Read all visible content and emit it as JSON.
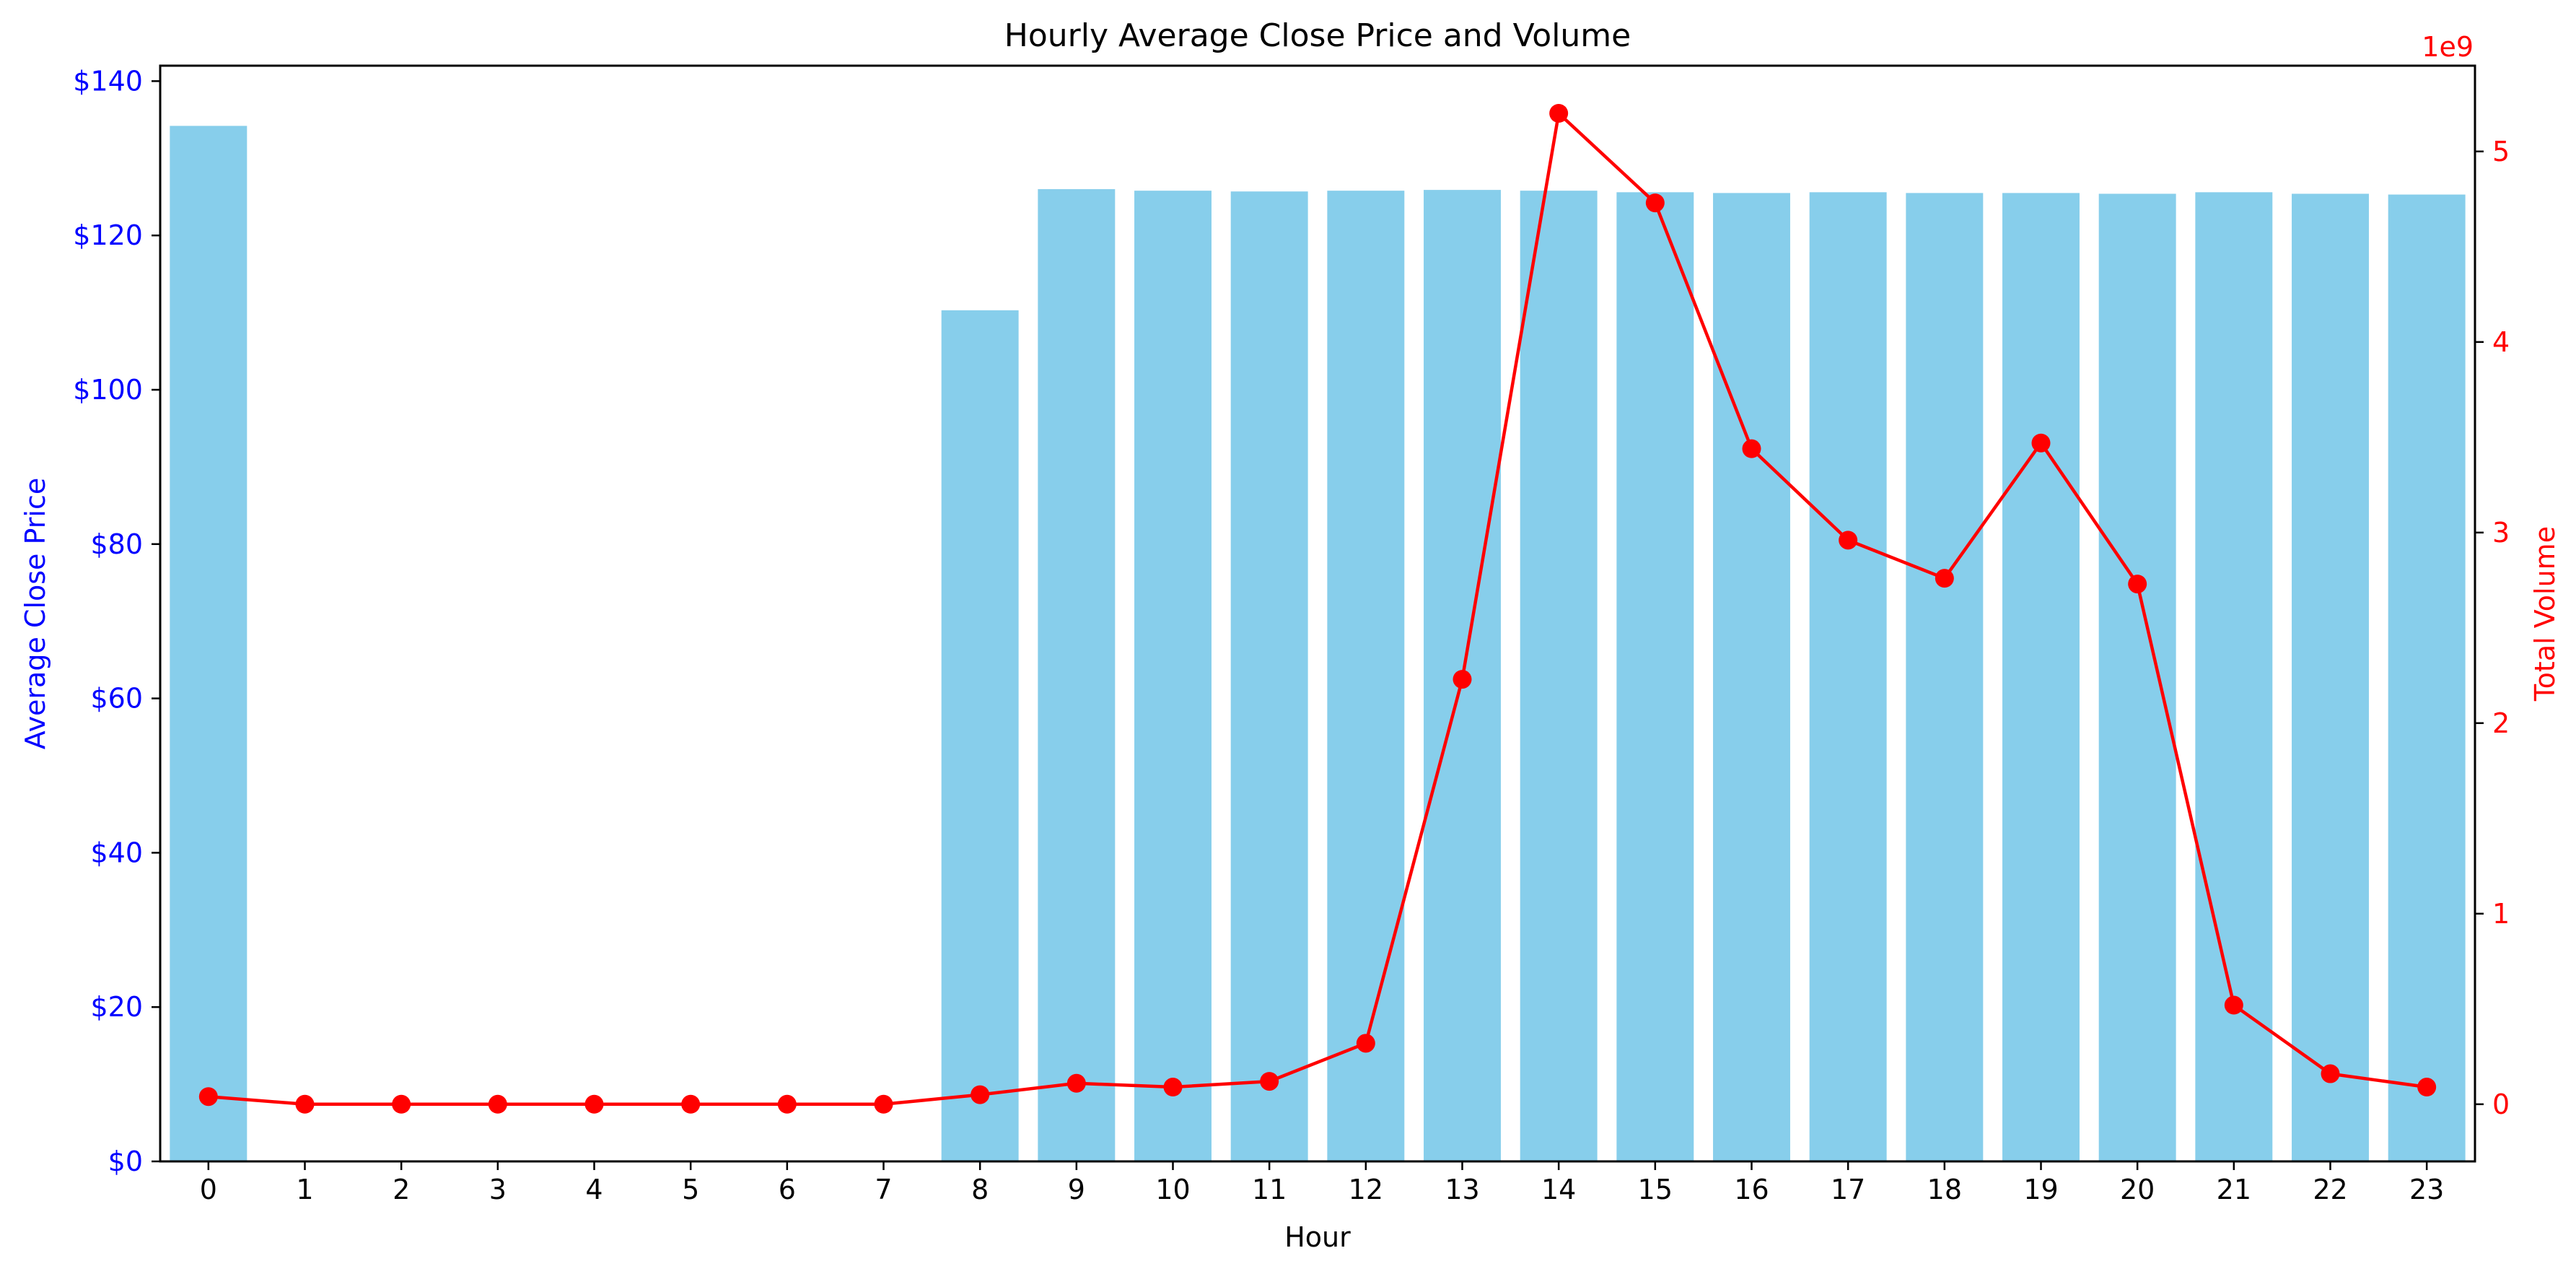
{
  "chart_data": {
    "type": "bar",
    "title": "Hourly Average Close Price and Volume",
    "xlabel": "Hour",
    "ylabel_left": "Average Close Price",
    "ylabel_right": "Total Volume",
    "right_axis_offset_text": "1e9",
    "categories": [
      "0",
      "1",
      "2",
      "3",
      "4",
      "5",
      "6",
      "7",
      "8",
      "9",
      "10",
      "11",
      "12",
      "13",
      "14",
      "15",
      "16",
      "17",
      "18",
      "19",
      "20",
      "21",
      "22",
      "23"
    ],
    "y_left": {
      "range": [
        0,
        142
      ],
      "ticks": [
        0,
        20,
        40,
        60,
        80,
        100,
        120,
        140
      ],
      "tick_labels": [
        "$0",
        "$20",
        "$40",
        "$60",
        "$80",
        "$100",
        "$120",
        "$140"
      ]
    },
    "y_right": {
      "range": [
        -0.3,
        5.45
      ],
      "ticks": [
        0,
        1,
        2,
        3,
        4,
        5
      ],
      "tick_labels": [
        "0",
        "1",
        "2",
        "3",
        "4",
        "5"
      ]
    },
    "grid": false,
    "series": [
      {
        "type": "bar",
        "axis": "left",
        "values": [
          134.2,
          0,
          0,
          0,
          0,
          0,
          0,
          0,
          110.3,
          126.0,
          125.8,
          125.7,
          125.8,
          125.9,
          125.8,
          125.6,
          125.5,
          125.6,
          125.5,
          125.5,
          125.4,
          125.6,
          125.4,
          125.3
        ]
      },
      {
        "type": "line",
        "axis": "right",
        "values": [
          0.04,
          0.0,
          0.0,
          0.0,
          0.0,
          0.0,
          0.0,
          0.0,
          0.05,
          0.11,
          0.09,
          0.12,
          0.32,
          2.23,
          5.2,
          4.73,
          3.44,
          2.96,
          2.76,
          3.47,
          2.73,
          0.52,
          0.16,
          0.09
        ]
      }
    ],
    "colors": {
      "bar": "#87ceeb",
      "line": "#ff0000",
      "left_axis": "#0000ff",
      "right_axis": "#ff0000",
      "text": "#000000"
    }
  }
}
